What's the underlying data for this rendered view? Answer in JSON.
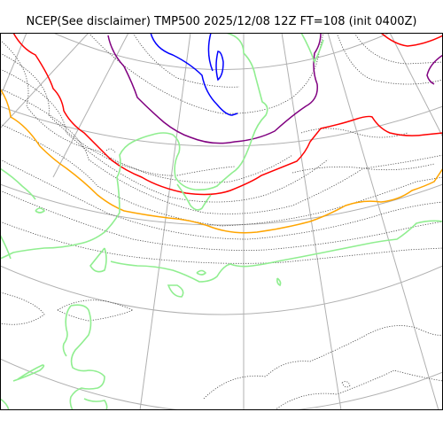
{
  "title": "NCEP(See disclaimer) TMP500 2025/12/08 12Z FT=108 (init 0400Z)",
  "colors": {
    "graticule": "#b0b0b0",
    "coastline": "#444444",
    "coast_outline": "#000000",
    "contour_minus_30": "#0000ff",
    "contour_minus_24": "#800080",
    "contour_minus_18": "#ff0000",
    "contour_minus_12": "#ffa500",
    "contour_minus_6": "#90ee90"
  },
  "contour_legend": [
    {
      "name": "blue",
      "color_key": "contour_minus_30"
    },
    {
      "name": "purple",
      "color_key": "contour_minus_24"
    },
    {
      "name": "red",
      "color_key": "contour_minus_18"
    },
    {
      "name": "orange",
      "color_key": "contour_minus_12"
    },
    {
      "name": "light-green",
      "color_key": "contour_minus_6"
    }
  ]
}
